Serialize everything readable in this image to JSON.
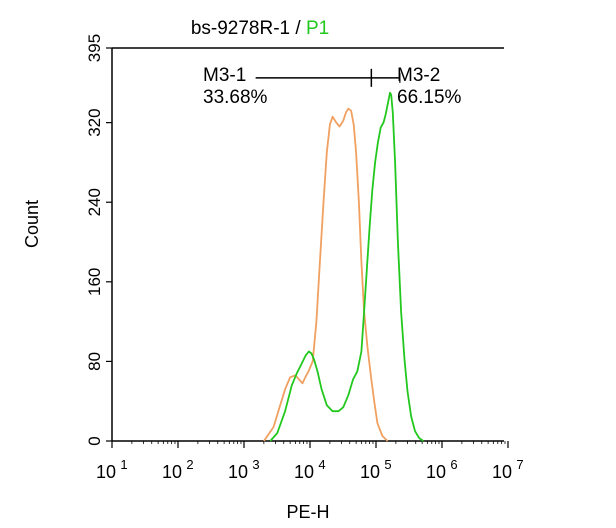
{
  "chart_data": {
    "type": "line",
    "title": "bs-9278R-1 / ",
    "title_highlight": "P1",
    "xlabel": "PE-H",
    "ylabel": "Count",
    "x_scale": "log",
    "xlim": [
      10,
      10000000
    ],
    "ylim": [
      0,
      395
    ],
    "x_ticks": [
      {
        "base": "10",
        "exp": "1",
        "value": 10
      },
      {
        "base": "10",
        "exp": "2",
        "value": 100
      },
      {
        "base": "10",
        "exp": "3",
        "value": 1000
      },
      {
        "base": "10",
        "exp": "4",
        "value": 10000
      },
      {
        "base": "10",
        "exp": "5",
        "value": 100000
      },
      {
        "base": "10",
        "exp": "6",
        "value": 1000000
      },
      {
        "base": "10",
        "exp": "7",
        "value": 10000000
      }
    ],
    "y_ticks": [
      {
        "label": "0",
        "value": 0
      },
      {
        "label": "80",
        "value": 80
      },
      {
        "label": "160",
        "value": 160
      },
      {
        "label": "240",
        "value": 240
      },
      {
        "label": "320",
        "value": 320
      },
      {
        "label": "395",
        "value": 395
      }
    ],
    "colors": {
      "control": "#f0a060",
      "sample": "#22c81e",
      "axis": "#000000"
    },
    "series": [
      {
        "name": "",
        "color": "#f0a060",
        "points": [
          [
            2000,
            0
          ],
          [
            2800,
            14
          ],
          [
            3500,
            35
          ],
          [
            4200,
            52
          ],
          [
            5000,
            64
          ],
          [
            6000,
            66
          ],
          [
            6800,
            62
          ],
          [
            7700,
            58
          ],
          [
            8500,
            64
          ],
          [
            9500,
            70
          ],
          [
            11000,
            80
          ],
          [
            12500,
            120
          ],
          [
            14000,
            175
          ],
          [
            16000,
            240
          ],
          [
            18000,
            290
          ],
          [
            20000,
            318
          ],
          [
            22000,
            326
          ],
          [
            25000,
            320
          ],
          [
            28000,
            316
          ],
          [
            32000,
            322
          ],
          [
            35000,
            330
          ],
          [
            38000,
            334
          ],
          [
            42000,
            332
          ],
          [
            46000,
            318
          ],
          [
            50000,
            290
          ],
          [
            55000,
            240
          ],
          [
            60000,
            180
          ],
          [
            66000,
            130
          ],
          [
            74000,
            95
          ],
          [
            85000,
            62
          ],
          [
            95000,
            38
          ],
          [
            105000,
            18
          ],
          [
            125000,
            5
          ],
          [
            150000,
            0
          ]
        ]
      },
      {
        "name": "",
        "color": "#22c81e",
        "points": [
          [
            2500,
            0
          ],
          [
            3200,
            8
          ],
          [
            4200,
            30
          ],
          [
            5300,
            56
          ],
          [
            6300,
            68
          ],
          [
            7500,
            78
          ],
          [
            8600,
            86
          ],
          [
            9600,
            90
          ],
          [
            10500,
            88
          ],
          [
            11500,
            82
          ],
          [
            13000,
            70
          ],
          [
            15000,
            52
          ],
          [
            18000,
            36
          ],
          [
            22000,
            30
          ],
          [
            27000,
            30
          ],
          [
            32000,
            34
          ],
          [
            38000,
            46
          ],
          [
            45000,
            62
          ],
          [
            52000,
            70
          ],
          [
            60000,
            90
          ],
          [
            66000,
            130
          ],
          [
            73000,
            175
          ],
          [
            80000,
            215
          ],
          [
            88000,
            252
          ],
          [
            97000,
            280
          ],
          [
            107000,
            300
          ],
          [
            118000,
            315
          ],
          [
            130000,
            320
          ],
          [
            140000,
            328
          ],
          [
            152000,
            340
          ],
          [
            163000,
            350
          ],
          [
            170000,
            348
          ],
          [
            180000,
            330
          ],
          [
            195000,
            280
          ],
          [
            215000,
            200
          ],
          [
            240000,
            130
          ],
          [
            270000,
            82
          ],
          [
            300000,
            50
          ],
          [
            340000,
            25
          ],
          [
            390000,
            10
          ],
          [
            450000,
            3
          ],
          [
            520000,
            0
          ]
        ]
      }
    ],
    "gates": [
      {
        "label": "M3-1",
        "percent": "33.68%",
        "x_start": 1500,
        "x_end": 85000,
        "y": 365
      },
      {
        "label": "M3-2",
        "percent": "66.15%",
        "x_start": 85000,
        "x_end": 230000,
        "y": 365
      }
    ]
  }
}
